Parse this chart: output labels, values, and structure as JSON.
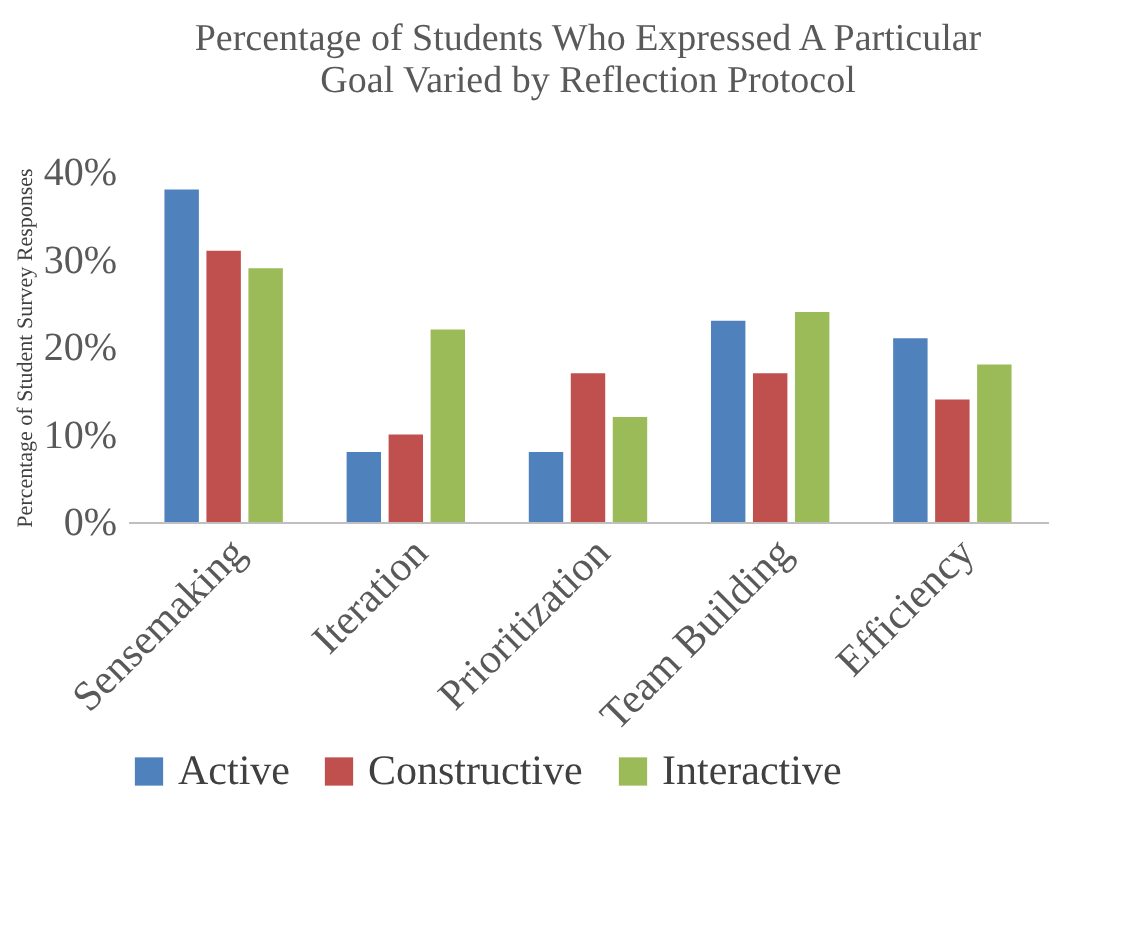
{
  "chart_data": {
    "type": "bar",
    "title": "Percentage of Students Who Expressed A Particular\nGoal Varied by Reflection Protocol",
    "ylabel": "Percentage of Student Survey Responses",
    "categories": [
      "Sensemaking",
      "Iteration",
      "Prioritization",
      "Team Building",
      "Efficiency"
    ],
    "series": [
      {
        "name": "Active",
        "color": "#4f81bd",
        "values": [
          38,
          8,
          8,
          23,
          21
        ]
      },
      {
        "name": "Constructive",
        "color": "#c0504d",
        "values": [
          31,
          10,
          17,
          17,
          14
        ]
      },
      {
        "name": "Interactive",
        "color": "#9bbb59",
        "values": [
          29,
          22,
          12,
          24,
          18
        ]
      }
    ],
    "ylim": [
      0,
      40
    ],
    "yticks": [
      {
        "value": 0,
        "label": "0%"
      },
      {
        "value": 10,
        "label": "10%"
      },
      {
        "value": 20,
        "label": "20%"
      },
      {
        "value": 30,
        "label": "30%"
      },
      {
        "value": 40,
        "label": "40%"
      }
    ],
    "grid": false,
    "legend": "bottom"
  }
}
